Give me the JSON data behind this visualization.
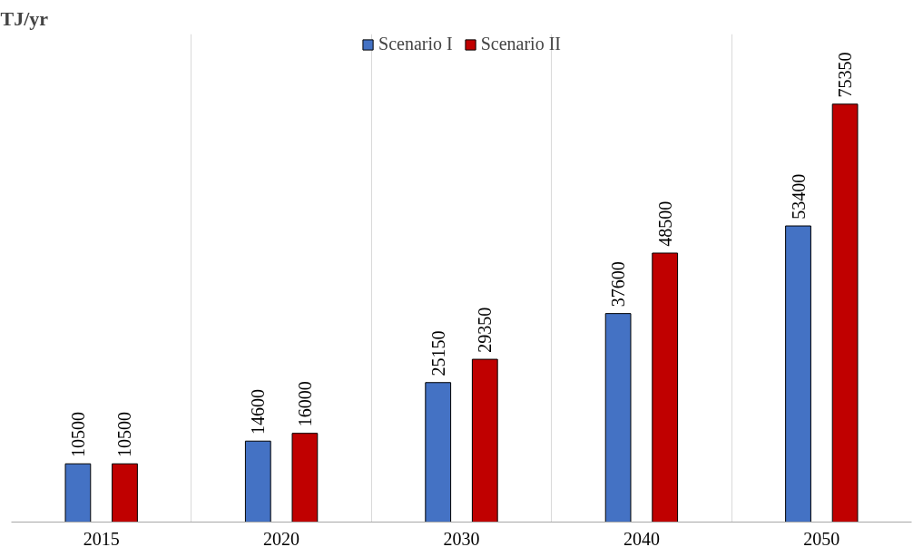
{
  "chart_data": {
    "type": "bar",
    "title": "TJ/yr",
    "categories": [
      "2015",
      "2020",
      "2030",
      "2040",
      "2050"
    ],
    "series": [
      {
        "name": "Scenario I",
        "color": "#4472c4",
        "values": [
          10500,
          14600,
          25150,
          37600,
          53400
        ]
      },
      {
        "name": "Scenario II",
        "color": "#c00000",
        "values": [
          10500,
          16000,
          29350,
          48500,
          75350
        ]
      }
    ],
    "ylim": [
      0,
      88000
    ],
    "tick_labels": "x",
    "grid": "x",
    "legend": "top",
    "data_labels": true
  }
}
